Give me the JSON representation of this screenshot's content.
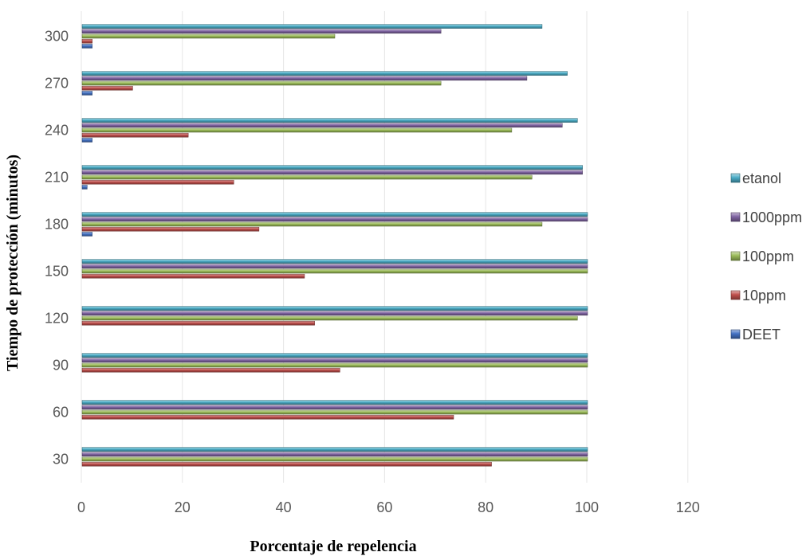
{
  "chart_data": {
    "type": "bar",
    "orientation": "horizontal",
    "title": "",
    "xlabel": "Porcentaje de repelencia",
    "ylabel": "Tiempo de protección (minutos)",
    "xlim": [
      0,
      120
    ],
    "xticks": [
      "0",
      "20",
      "40",
      "60",
      "80",
      "100",
      "120"
    ],
    "categories": [
      "30",
      "60",
      "90",
      "120",
      "150",
      "180",
      "210",
      "240",
      "270",
      "300"
    ],
    "grid": "vertical",
    "legend_position": "right",
    "series": [
      {
        "name": "DEET",
        "color": "#4472c4",
        "values": [
          0,
          0,
          0,
          0,
          0,
          2,
          1,
          2,
          2,
          2
        ]
      },
      {
        "name": "10ppm",
        "color": "#c0504d",
        "values": [
          81,
          73.5,
          51,
          46,
          44,
          35,
          30,
          21,
          10,
          2
        ]
      },
      {
        "name": "100ppm",
        "color": "#9bbb59",
        "values": [
          100,
          100,
          100,
          98,
          100,
          91,
          89,
          85,
          71,
          50
        ]
      },
      {
        "name": "1000ppm",
        "color": "#8064a2",
        "values": [
          100,
          100,
          100,
          100,
          100,
          100,
          99,
          95,
          88,
          71
        ]
      },
      {
        "name": "etanol",
        "color": "#4bacc6",
        "values": [
          100,
          100,
          100,
          100,
          100,
          100,
          99,
          98,
          96,
          91
        ]
      }
    ]
  }
}
